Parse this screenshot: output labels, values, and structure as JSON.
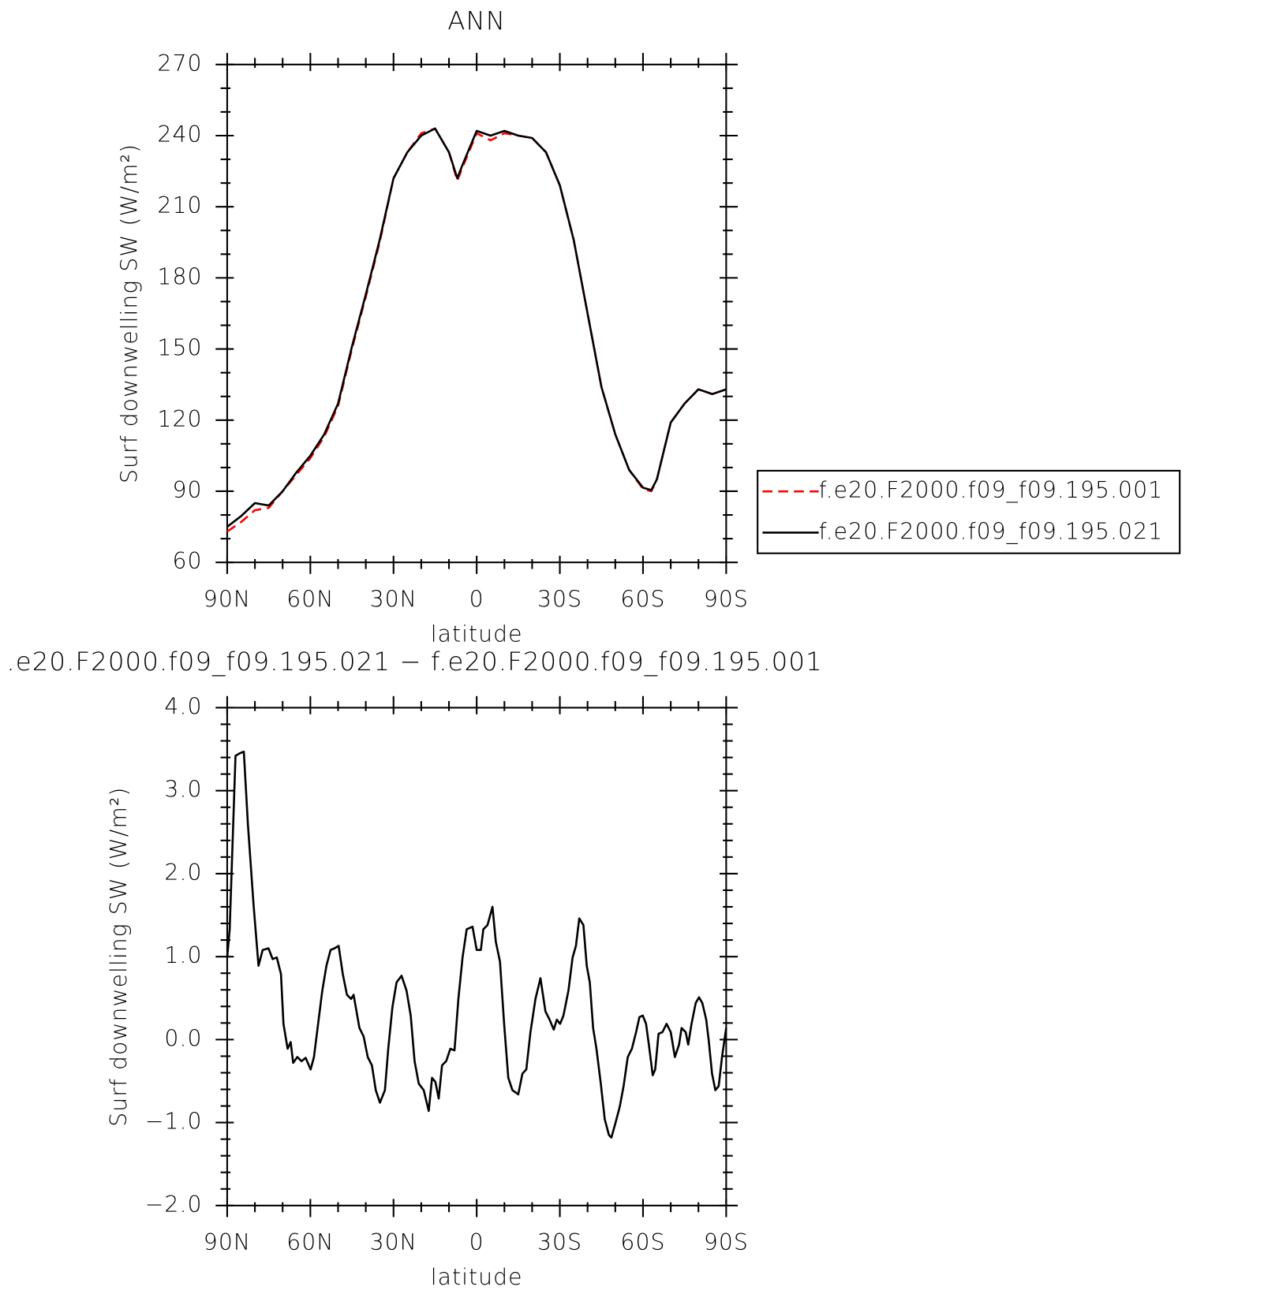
{
  "chart_data": [
    {
      "type": "line",
      "title": "ANN",
      "xlabel": "latitude",
      "ylabel": "Surf downwelling SW (W/m²)",
      "x": [
        90,
        85,
        80,
        75,
        70,
        65,
        60,
        55,
        50,
        45,
        40,
        35,
        30,
        25,
        20,
        15,
        10,
        7,
        5,
        0,
        -5,
        -10,
        -15,
        -20,
        -25,
        -30,
        -35,
        -40,
        -45,
        -50,
        -55,
        -60,
        -63,
        -65,
        -70,
        -75,
        -80,
        -85,
        -90
      ],
      "series": [
        {
          "name": "f.e20.F2000.f09_f09.195.001",
          "color": "#ff0000",
          "dashed": true,
          "values": [
            73,
            77,
            82,
            83,
            90,
            97,
            104,
            113,
            126,
            150,
            172,
            195,
            222,
            233,
            241,
            243,
            233,
            221,
            227,
            241,
            238,
            241,
            240,
            239,
            233,
            219,
            196,
            165,
            134,
            114,
            99,
            91,
            90,
            95,
            119,
            127,
            133,
            131,
            133
          ]
        },
        {
          "name": "f.e20.F2000.f09_f09.195.021",
          "color": "#000000",
          "dashed": false,
          "values": [
            75,
            79.5,
            85,
            84,
            90,
            98,
            105,
            114,
            127,
            151,
            173,
            196,
            222,
            233,
            240,
            243,
            233,
            222,
            228,
            242,
            240,
            242,
            240,
            239,
            233,
            219,
            196,
            165,
            134,
            114,
            99,
            91.5,
            90.5,
            95,
            119,
            127,
            133,
            131,
            133
          ]
        }
      ],
      "xlim": [
        90,
        -90
      ],
      "xticks": [
        {
          "value": 90,
          "label": "90N"
        },
        {
          "value": 60,
          "label": "60N"
        },
        {
          "value": 30,
          "label": "30N"
        },
        0,
        {
          "value": -30,
          "label": "30S"
        },
        {
          "value": -60,
          "label": "60S"
        },
        {
          "value": -90,
          "label": "90S"
        }
      ],
      "ylim": [
        60,
        270
      ],
      "yticks": [
        60,
        90,
        120,
        150,
        180,
        210,
        240,
        270
      ],
      "legend": "right"
    },
    {
      "type": "line",
      "title": ".e20.F2000.f09_f09.195.021 − f.e20.F2000.f09_f09.195.001",
      "xlabel": "latitude",
      "ylabel": "Surf downwelling SW (W/m²)",
      "x": [
        90,
        89.1,
        87,
        85.5,
        84,
        82.5,
        80.5,
        78.7,
        77.2,
        75.1,
        73.6,
        72.1,
        70.6,
        69.7,
        68.2,
        67.1,
        66.2,
        64.7,
        63.2,
        61.7,
        59.9,
        58.7,
        57.2,
        55.7,
        54.2,
        52.7,
        51.3,
        49.8,
        48.3,
        46.8,
        45.3,
        44.4,
        42.3,
        40.8,
        39.3,
        37.8,
        36.4,
        34.9,
        33.1,
        31.9,
        30.4,
        28.9,
        27.1,
        25.3,
        23.8,
        22.4,
        20.9,
        19.1,
        17.3,
        16.1,
        14.9,
        13.7,
        12.5,
        11,
        9.5,
        8,
        6.6,
        5.1,
        3.6,
        1.5,
        0,
        -1.5,
        -2.4,
        -3.9,
        -5.7,
        -6.9,
        -8.4,
        -9.9,
        -11.4,
        -12.9,
        -15,
        -16.5,
        -17.9,
        -19.4,
        -21.2,
        -23,
        -24.8,
        -26.3,
        -27.8,
        -28.9,
        -30.1,
        -31.3,
        -33.1,
        -34.6,
        -35.8,
        -37,
        -38.5,
        -39.7,
        -40.8,
        -42,
        -43.2,
        -44.7,
        -46.2,
        -47.7,
        -48.6,
        -50.1,
        -51.6,
        -53,
        -54.5,
        -56,
        -57.5,
        -58.7,
        -59.9,
        -61.1,
        -62.3,
        -63.5,
        -64.4,
        -65.6,
        -67,
        -68.5,
        -70,
        -71.5,
        -73,
        -73.9,
        -75.4,
        -76.3,
        -77.5,
        -79,
        -80.2,
        -81.4,
        -82.8,
        -83.7,
        -84.9,
        -86.1,
        -87.3,
        -88.5,
        -90
      ],
      "values": [
        0.99,
        1.33,
        3.42,
        3.45,
        3.47,
        2.58,
        1.63,
        0.89,
        1.08,
        1.1,
        0.97,
        0.99,
        0.79,
        0.19,
        -0.11,
        -0.03,
        -0.28,
        -0.21,
        -0.26,
        -0.22,
        -0.36,
        -0.21,
        0.19,
        0.59,
        0.89,
        1.08,
        1.1,
        1.13,
        0.79,
        0.54,
        0.49,
        0.54,
        0.14,
        0.04,
        -0.21,
        -0.31,
        -0.61,
        -0.76,
        -0.61,
        -0.11,
        0.39,
        0.69,
        0.77,
        0.59,
        0.29,
        -0.26,
        -0.53,
        -0.61,
        -0.86,
        -0.46,
        -0.51,
        -0.71,
        -0.31,
        -0.26,
        -0.11,
        -0.13,
        0.49,
        0.99,
        1.33,
        1.36,
        1.08,
        1.08,
        1.33,
        1.38,
        1.6,
        1.18,
        0.94,
        0.19,
        -0.46,
        -0.61,
        -0.66,
        -0.41,
        -0.36,
        0.09,
        0.49,
        0.74,
        0.34,
        0.24,
        0.12,
        0.24,
        0.19,
        0.29,
        0.59,
        0.99,
        1.13,
        1.46,
        1.38,
        0.89,
        0.69,
        0.14,
        -0.11,
        -0.51,
        -0.96,
        -1.15,
        -1.18,
        -1,
        -0.81,
        -0.56,
        -0.21,
        -0.11,
        0.09,
        0.27,
        0.29,
        0.19,
        -0.11,
        -0.43,
        -0.36,
        0.07,
        0.09,
        0.19,
        0.09,
        -0.21,
        -0.06,
        0.14,
        0.09,
        -0.06,
        0.19,
        0.44,
        0.51,
        0.44,
        0.24,
        -0.01,
        -0.41,
        -0.61,
        -0.56,
        -0.21,
        0.14
      ],
      "color": "#000000",
      "xlim": [
        90,
        -90
      ],
      "xticks": [
        {
          "value": 90,
          "label": "90N"
        },
        {
          "value": 60,
          "label": "60N"
        },
        {
          "value": 30,
          "label": "30N"
        },
        0,
        {
          "value": -30,
          "label": "30S"
        },
        {
          "value": -60,
          "label": "60S"
        },
        {
          "value": -90,
          "label": "90S"
        }
      ],
      "ylim": [
        -2,
        4
      ],
      "yticks": [
        {
          "value": -2,
          "label": "−2.0"
        },
        {
          "value": -1,
          "label": "−1.0"
        },
        {
          "value": 0,
          "label": "0.0"
        },
        {
          "value": 1,
          "label": "1.0"
        },
        {
          "value": 2,
          "label": "2.0"
        },
        {
          "value": 3,
          "label": "3.0"
        },
        {
          "value": 4,
          "label": "4.0"
        }
      ]
    }
  ]
}
